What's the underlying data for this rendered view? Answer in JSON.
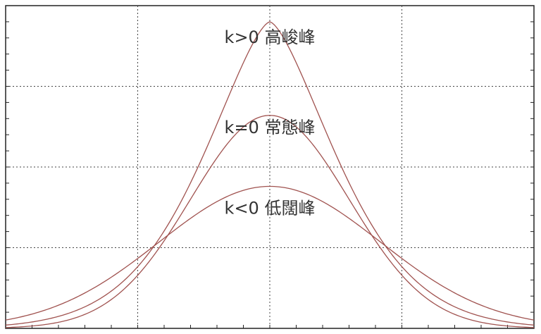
{
  "chart_data": {
    "type": "line",
    "title": "",
    "xlabel": "",
    "ylabel": "",
    "xlim": [
      -1,
      1
    ],
    "ylim": [
      0,
      1
    ],
    "grid": true,
    "series_color": "#a0524f",
    "series": [
      {
        "peak": 0.95,
        "spread": 0.23,
        "shape": 1.5
      },
      {
        "peak": 0.66,
        "spread": 0.3,
        "shape": 2.0
      },
      {
        "peak": 0.44,
        "spread": 0.42,
        "shape": 2.0
      }
    ],
    "annotations": [
      {
        "text": "k>0 高峻峰",
        "x": 0.0,
        "y": 0.9
      },
      {
        "text": "k=0 常態峰",
        "x": 0.0,
        "y": 0.62
      },
      {
        "text": "k<0 低闊峰",
        "x": 0.0,
        "y": 0.37
      }
    ]
  }
}
